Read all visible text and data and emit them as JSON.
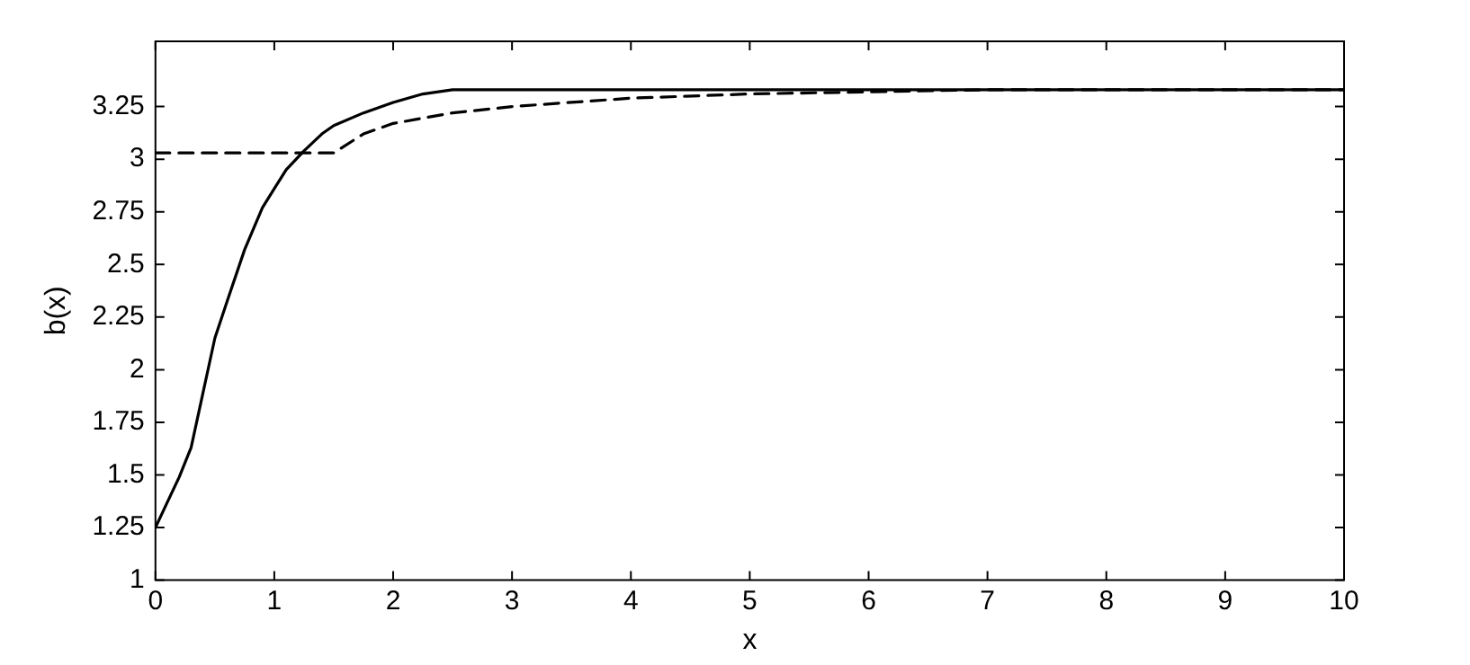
{
  "chart_data": {
    "type": "line",
    "xlabel": "x",
    "ylabel": "b(x)",
    "xlim": [
      0,
      10
    ],
    "ylim": [
      1,
      3.56
    ],
    "xticks": [
      0,
      1,
      2,
      3,
      4,
      5,
      6,
      7,
      8,
      9,
      10
    ],
    "yticks": [
      1,
      1.25,
      1.5,
      1.75,
      2,
      2.25,
      2.5,
      2.75,
      3,
      3.25
    ],
    "grid": false,
    "legend": false,
    "marker": "none",
    "series": [
      {
        "color": "#000000",
        "line_style": "solid",
        "x": [
          0,
          0.1,
          0.2,
          0.3,
          0.4,
          0.5,
          0.6,
          0.75,
          0.9,
          1,
          1.1,
          1.25,
          1.4,
          1.5,
          1.75,
          2,
          2.25,
          2.5,
          2.6,
          3,
          4,
          5,
          6,
          7,
          8,
          9,
          10
        ],
        "values": [
          1.25,
          1.37,
          1.49,
          1.63,
          1.89,
          2.15,
          2.32,
          2.57,
          2.77,
          2.86,
          2.95,
          3.04,
          3.12,
          3.16,
          3.22,
          3.27,
          3.31,
          3.33,
          3.33,
          3.33,
          3.33,
          3.33,
          3.33,
          3.33,
          3.33,
          3.33,
          3.33
        ]
      },
      {
        "color": "#000000",
        "line_style": "dashed",
        "x": [
          0,
          0.5,
          1,
          1.5,
          1.75,
          2,
          2.5,
          3,
          4,
          5,
          6,
          7,
          8,
          9,
          10
        ],
        "values": [
          3.03,
          3.03,
          3.03,
          3.03,
          3.12,
          3.17,
          3.22,
          3.25,
          3.29,
          3.31,
          3.32,
          3.33,
          3.33,
          3.33,
          3.33
        ]
      }
    ]
  }
}
